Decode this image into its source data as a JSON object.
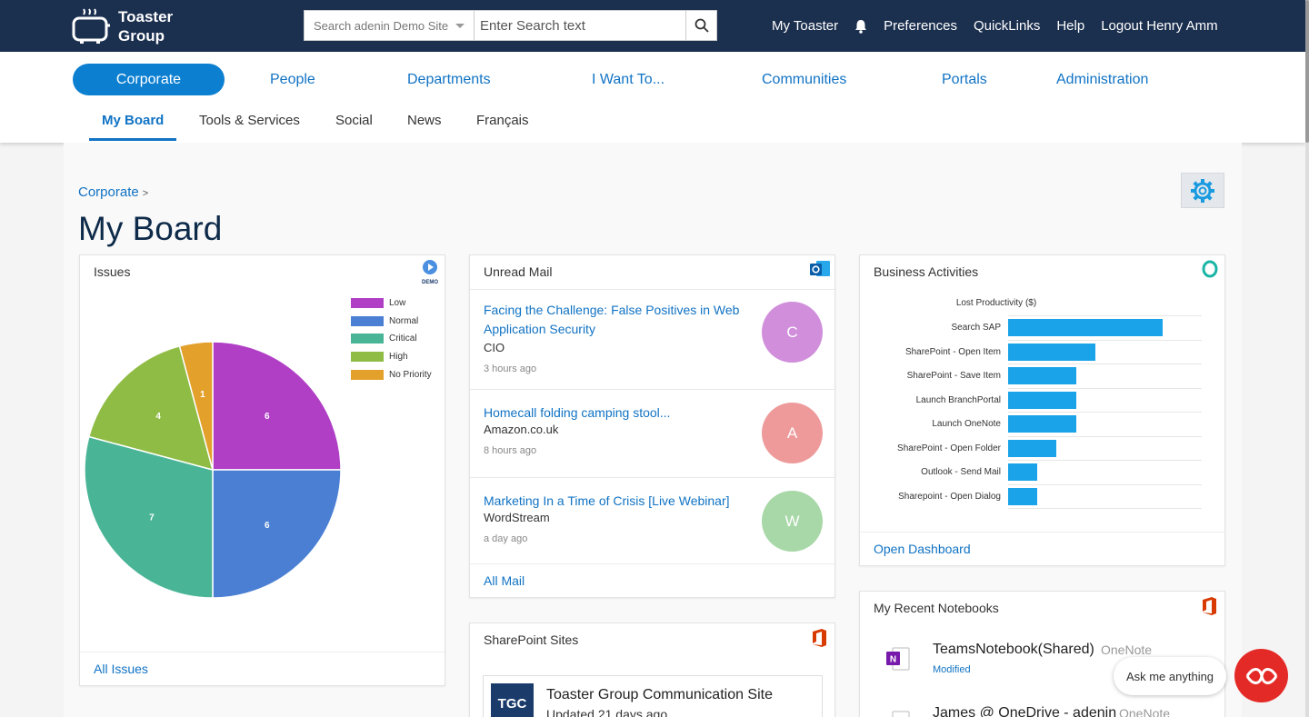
{
  "header": {
    "logo_line1": "Toaster",
    "logo_line2": "Group",
    "search_scope": "Search adenin Demo Site",
    "search_placeholder": "Enter Search text",
    "links": [
      "My Toaster",
      "Preferences",
      "QuickLinks",
      "Help",
      "Logout Henry Amm"
    ]
  },
  "primary_nav": [
    "Corporate",
    "People",
    "Departments",
    "I Want To...",
    "Communities",
    "Portals",
    "Administration"
  ],
  "secondary_nav": [
    "My Board",
    "Tools & Services",
    "Social",
    "News",
    "Français"
  ],
  "breadcrumb": "Corporate",
  "breadcrumb_sep": ">",
  "page_title": "My Board",
  "issues": {
    "title": "Issues",
    "footer": "All Issues",
    "demo_badge": "DEMO",
    "chart_data": {
      "type": "pie",
      "categories": [
        "Low",
        "Normal",
        "Critical",
        "High",
        "No Priority"
      ],
      "values": [
        6,
        6,
        7,
        4,
        1
      ],
      "colors": [
        "#b03fc6",
        "#4a7fd4",
        "#4ab596",
        "#8fbc45",
        "#e3a02b"
      ],
      "legend": "top-right"
    }
  },
  "mail": {
    "title": "Unread Mail",
    "footer": "All Mail",
    "items": [
      {
        "subject": "Facing the Challenge: False Positives in Web Application Security",
        "from": "CIO",
        "time": "3 hours ago",
        "initial": "C",
        "color": "#d08edb"
      },
      {
        "subject": "Homecall folding camping stool...",
        "from": "Amazon.co.uk",
        "time": "8 hours ago",
        "initial": "A",
        "color": "#ee9a9a"
      },
      {
        "subject": "Marketing In a Time of Crisis [Live Webinar]",
        "from": "WordStream",
        "time": "a day ago",
        "initial": "W",
        "color": "#a8d8a8"
      }
    ]
  },
  "sharepoint": {
    "title": "SharePoint Sites",
    "site_badge": "TGC",
    "site_name": "Toaster Group Communication Site",
    "site_updated": "Updated 21 days ago"
  },
  "business": {
    "title": "Business Activities",
    "footer": "Open Dashboard",
    "chart_data": {
      "type": "bar",
      "orientation": "horizontal",
      "title": "Lost Productivity ($)",
      "categories": [
        "Search SAP",
        "SharePoint - Open Item",
        "SharePoint - Save Item",
        "Launch BranchPortal",
        "Launch OneNote",
        "SharePoint - Open Folder",
        "Outlook - Send Mail",
        "Sharepoint - Open Dialog"
      ],
      "values": [
        80,
        45,
        35,
        35,
        35,
        25,
        15,
        15
      ],
      "xlim": [
        0,
        100
      ],
      "color": "#1aa3e8"
    }
  },
  "notebooks": {
    "title": "My Recent Notebooks",
    "items": [
      {
        "name": "TeamsNotebook(Shared)",
        "app": "OneNote",
        "status": "Modified"
      },
      {
        "name": "James @ OneDrive - adenin",
        "app": "OneNote",
        "status": ""
      }
    ]
  },
  "chat": {
    "label": "Ask me anything"
  }
}
